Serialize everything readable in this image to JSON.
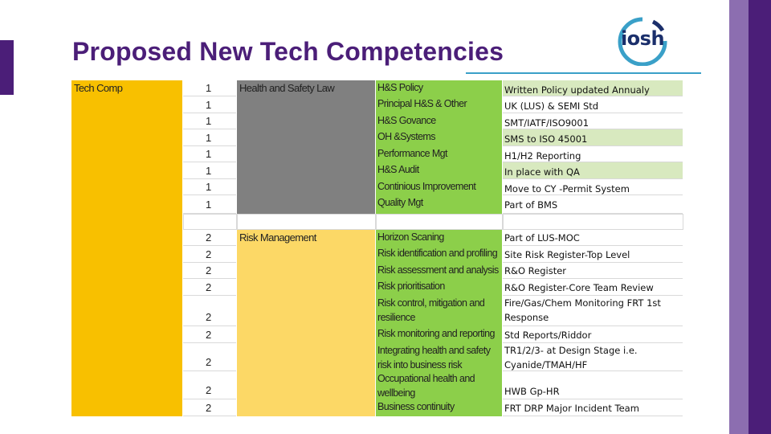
{
  "title": "Proposed New Tech Competencies",
  "logo_text": "iosh",
  "colors": {
    "title": "#4b1e78",
    "accent_dark": "#4b1e78",
    "accent_light": "#8c6eb0",
    "tech_comp": "#f8c000",
    "hs_law": "#808080",
    "risk_mgmt": "#fcd866",
    "topic": "#8ccf4a",
    "note_green": "#d8e9bf"
  },
  "table": {
    "tech_comp_label": "Tech Comp",
    "group1": {
      "area": "Health and Safety Law",
      "rows": [
        {
          "level": "1",
          "topic": "H&S Policy",
          "note": "Written Policy updated Annualy",
          "green": true
        },
        {
          "level": "1",
          "topic": "Principal H&S & Other",
          "note": "UK (LUS) & SEMI Std",
          "green": false
        },
        {
          "level": "1",
          "topic": "H&S Govance",
          "note": "SMT/IATF/ISO9001",
          "green": false
        },
        {
          "level": "1",
          "topic": "OH &Systems",
          "note": "SMS to ISO 45001",
          "green": true
        },
        {
          "level": "1",
          "topic": "Performance Mgt",
          "note": "H1/H2 Reporting",
          "green": false
        },
        {
          "level": "1",
          "topic": "H&S Audit",
          "note": "In place with QA",
          "green": true
        },
        {
          "level": "1",
          "topic": "Continious  Improvement",
          "note": "Move to CY -Permit System",
          "green": false
        },
        {
          "level": "1",
          "topic": "Quality Mgt",
          "note": "Part of BMS",
          "green": false
        }
      ]
    },
    "group2": {
      "area": "Risk Management",
      "rows": [
        {
          "level": "2",
          "topic": "Horizon Scaning",
          "note": "Part of LUS-MOC"
        },
        {
          "level": "2",
          "topic": "Risk identification and profiling",
          "note": "Site Risk Register-Top Level"
        },
        {
          "level": "2",
          "topic": "Risk assessment and analysis",
          "note": "R&O Register"
        },
        {
          "level": "2",
          "topic": "Risk prioritisation",
          "note": "R&O Register-Core Team Review"
        },
        {
          "level": "2",
          "topic_lines": [
            "Risk control, mitigation and",
            "resilience"
          ],
          "note_lines": [
            "Fire/Gas/Chem Monitoring FRT 1st",
            "Response"
          ]
        },
        {
          "level": "2",
          "topic": "Risk monitoring and reporting",
          "note": "Std Reports/Riddor"
        },
        {
          "level": "2",
          "topic_lines": [
            "Integrating health and safety",
            "risk into business risk"
          ],
          "note_lines": [
            "TR1/2/3- at Design Stage i.e.",
            "Cyanide/TMAH/HF"
          ]
        },
        {
          "level": "2",
          "topic_lines": [
            "Occupational health and",
            "wellbeing"
          ],
          "note": "HWB Gp-HR"
        },
        {
          "level": "2",
          "topic": "Business continuity",
          "note": "FRT DRP  Major Incident Team"
        }
      ]
    }
  }
}
